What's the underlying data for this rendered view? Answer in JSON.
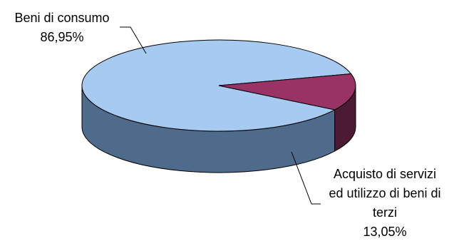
{
  "chart_data": {
    "type": "pie",
    "style": "3d",
    "slices": [
      {
        "label_lines": [
          "Beni di consumo"
        ],
        "value_label": "86,95%",
        "value": 86.95,
        "top_color": "#a6caf0",
        "side_color": "#4e6b8b"
      },
      {
        "label_lines": [
          "Acquisto di servizi",
          "ed utilizzo di beni di",
          "terzi"
        ],
        "value_label": "13,05%",
        "value": 13.05,
        "top_color": "#993366",
        "side_color": "#4d1a33"
      }
    ],
    "legend": "none"
  }
}
